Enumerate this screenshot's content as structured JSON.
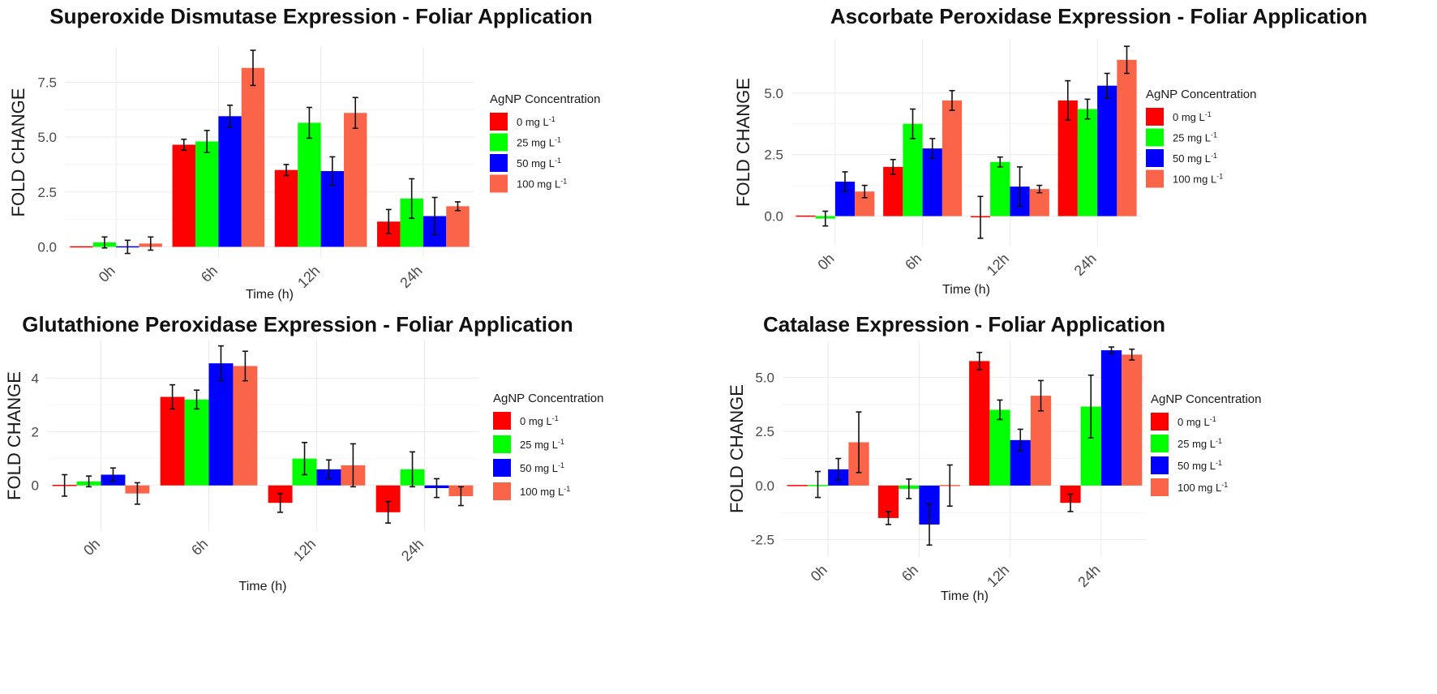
{
  "chart_data": [
    {
      "type": "bar",
      "title": "Superoxide Dismutase Expression - Foliar Application",
      "xlabel": "Time (h)",
      "ylabel": "FOLD CHANGE",
      "categories": [
        "0h",
        "6h",
        "12h",
        "24h"
      ],
      "ylim": [
        -0.5,
        9.1
      ],
      "yticks": [
        0.0,
        2.5,
        5.0,
        7.5
      ],
      "ytick_labels": [
        "0.0",
        "2.5",
        "5.0",
        "7.5"
      ],
      "legend_title": "AgNP Concentration",
      "series": [
        {
          "name": "0 mg L",
          "sup": "-1",
          "color": "#ff0000",
          "values": [
            0.0,
            4.65,
            3.5,
            1.15
          ],
          "errors": [
            0.0,
            0.25,
            0.25,
            0.55
          ]
        },
        {
          "name": "25 mg L",
          "sup": "-1",
          "color": "#00ff00",
          "values": [
            0.2,
            4.8,
            5.65,
            2.2
          ],
          "errors": [
            0.25,
            0.5,
            0.7,
            0.9
          ]
        },
        {
          "name": "50 mg L",
          "sup": "-1",
          "color": "#0000ff",
          "values": [
            0.0,
            5.95,
            3.45,
            1.4
          ],
          "errors": [
            0.3,
            0.5,
            0.65,
            0.85
          ]
        },
        {
          "name": "100 mg L",
          "sup": "-1",
          "color": "#fa6448",
          "values": [
            0.15,
            8.15,
            6.1,
            1.85
          ],
          "errors": [
            0.3,
            0.8,
            0.7,
            0.2
          ]
        }
      ]
    },
    {
      "type": "bar",
      "title": "Ascorbate Peroxidase Expression - Foliar Application",
      "xlabel": "Time (h)",
      "ylabel": "FOLD CHANGE",
      "categories": [
        "0h",
        "6h",
        "12h",
        "24h"
      ],
      "ylim": [
        -1.2,
        7.2
      ],
      "yticks": [
        0.0,
        2.5,
        5.0
      ],
      "ytick_labels": [
        "0.0",
        "2.5",
        "5.0"
      ],
      "legend_title": "AgNP Concentration",
      "series": [
        {
          "name": "0 mg L",
          "sup": "-1",
          "color": "#ff0000",
          "values": [
            0.0,
            2.0,
            -0.05,
            4.7
          ],
          "errors": [
            0.0,
            0.3,
            0.85,
            0.8
          ]
        },
        {
          "name": "25 mg L",
          "sup": "-1",
          "color": "#00ff00",
          "values": [
            -0.1,
            3.75,
            2.2,
            4.35
          ],
          "errors": [
            0.3,
            0.6,
            0.2,
            0.4
          ]
        },
        {
          "name": "50 mg L",
          "sup": "-1",
          "color": "#0000ff",
          "values": [
            1.4,
            2.75,
            1.2,
            5.3
          ],
          "errors": [
            0.4,
            0.4,
            0.8,
            0.5
          ]
        },
        {
          "name": "100 mg L",
          "sup": "-1",
          "color": "#fa6448",
          "values": [
            1.0,
            4.7,
            1.1,
            6.35
          ],
          "errors": [
            0.25,
            0.4,
            0.15,
            0.55
          ]
        }
      ]
    },
    {
      "type": "bar",
      "title": "Glutathione Peroxidase Expression - Foliar Application",
      "xlabel": "Time (h)",
      "ylabel": "FOLD CHANGE",
      "categories": [
        "0h",
        "6h",
        "12h",
        "24h"
      ],
      "ylim": [
        -1.7,
        5.4
      ],
      "yticks": [
        0,
        2,
        4
      ],
      "ytick_labels": [
        "0",
        "2",
        "4"
      ],
      "legend_title": "AgNP Concentration",
      "series": [
        {
          "name": "0 mg L",
          "sup": "-1",
          "color": "#ff0000",
          "values": [
            0.0,
            3.3,
            -0.65,
            -1.0
          ],
          "errors": [
            0.4,
            0.45,
            0.35,
            0.4
          ]
        },
        {
          "name": "25 mg L",
          "sup": "-1",
          "color": "#00ff00",
          "values": [
            0.15,
            3.2,
            1.0,
            0.6
          ],
          "errors": [
            0.2,
            0.35,
            0.6,
            0.65
          ]
        },
        {
          "name": "50 mg L",
          "sup": "-1",
          "color": "#0000ff",
          "values": [
            0.4,
            4.55,
            0.6,
            -0.1
          ],
          "errors": [
            0.25,
            0.65,
            0.35,
            0.35
          ]
        },
        {
          "name": "100 mg L",
          "sup": "-1",
          "color": "#fa6448",
          "values": [
            -0.3,
            4.45,
            0.75,
            -0.4
          ],
          "errors": [
            0.4,
            0.55,
            0.8,
            0.35
          ]
        }
      ]
    },
    {
      "type": "bar",
      "title": "Catalase Expression - Foliar Application",
      "xlabel": "Time (h)",
      "ylabel": "FOLD CHANGE",
      "categories": [
        "0h",
        "6h",
        "12h",
        "24h"
      ],
      "ylim": [
        -3.3,
        6.7
      ],
      "yticks": [
        -2.5,
        0.0,
        2.5,
        5.0
      ],
      "ytick_labels": [
        "-2.5",
        "0.0",
        "2.5",
        "5.0"
      ],
      "legend_title": "AgNP Concentration",
      "series": [
        {
          "name": "0 mg L",
          "sup": "-1",
          "color": "#ff0000",
          "values": [
            0.0,
            -1.5,
            5.75,
            -0.8
          ],
          "errors": [
            0.0,
            0.3,
            0.4,
            0.4
          ]
        },
        {
          "name": "25 mg L",
          "sup": "-1",
          "color": "#00ff00",
          "values": [
            0.05,
            -0.15,
            3.5,
            3.65
          ],
          "errors": [
            0.6,
            0.45,
            0.45,
            1.45
          ]
        },
        {
          "name": "50 mg L",
          "sup": "-1",
          "color": "#0000ff",
          "values": [
            0.75,
            -1.8,
            2.1,
            6.25
          ],
          "errors": [
            0.5,
            0.95,
            0.5,
            0.15
          ]
        },
        {
          "name": "100 mg L",
          "sup": "-1",
          "color": "#fa6448",
          "values": [
            2.0,
            0.0,
            4.15,
            6.05
          ],
          "errors": [
            1.4,
            0.95,
            0.7,
            0.25
          ]
        }
      ]
    }
  ]
}
